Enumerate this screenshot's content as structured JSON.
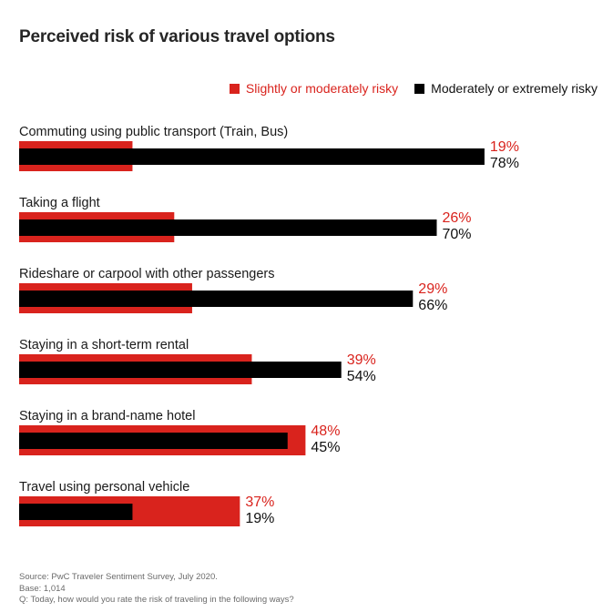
{
  "chart_data": {
    "type": "bar",
    "orientation": "horizontal",
    "title": "Perceived risk of various travel options",
    "categories": [
      "Commuting using public transport (Train, Bus)",
      "Taking a flight",
      "Rideshare or carpool with other passengers",
      "Staying in a short-term rental",
      "Staying in a brand-name hotel",
      "Travel using personal vehicle"
    ],
    "series": [
      {
        "name": "Slightly or moderately risky",
        "color": "#d9231d",
        "values": [
          19,
          26,
          29,
          39,
          48,
          37
        ]
      },
      {
        "name": "Moderately or extremely risky",
        "color": "#000000",
        "values": [
          78,
          70,
          66,
          54,
          45,
          19
        ]
      }
    ],
    "value_suffix": "%",
    "legend_position": "top-right",
    "grid": false
  },
  "footer": {
    "source": "Source: PwC Traveler Sentiment Survey, July 2020.",
    "base": "Base: 1,014",
    "question": "Q: Today, how would you rate the risk of traveling in the following ways?"
  }
}
